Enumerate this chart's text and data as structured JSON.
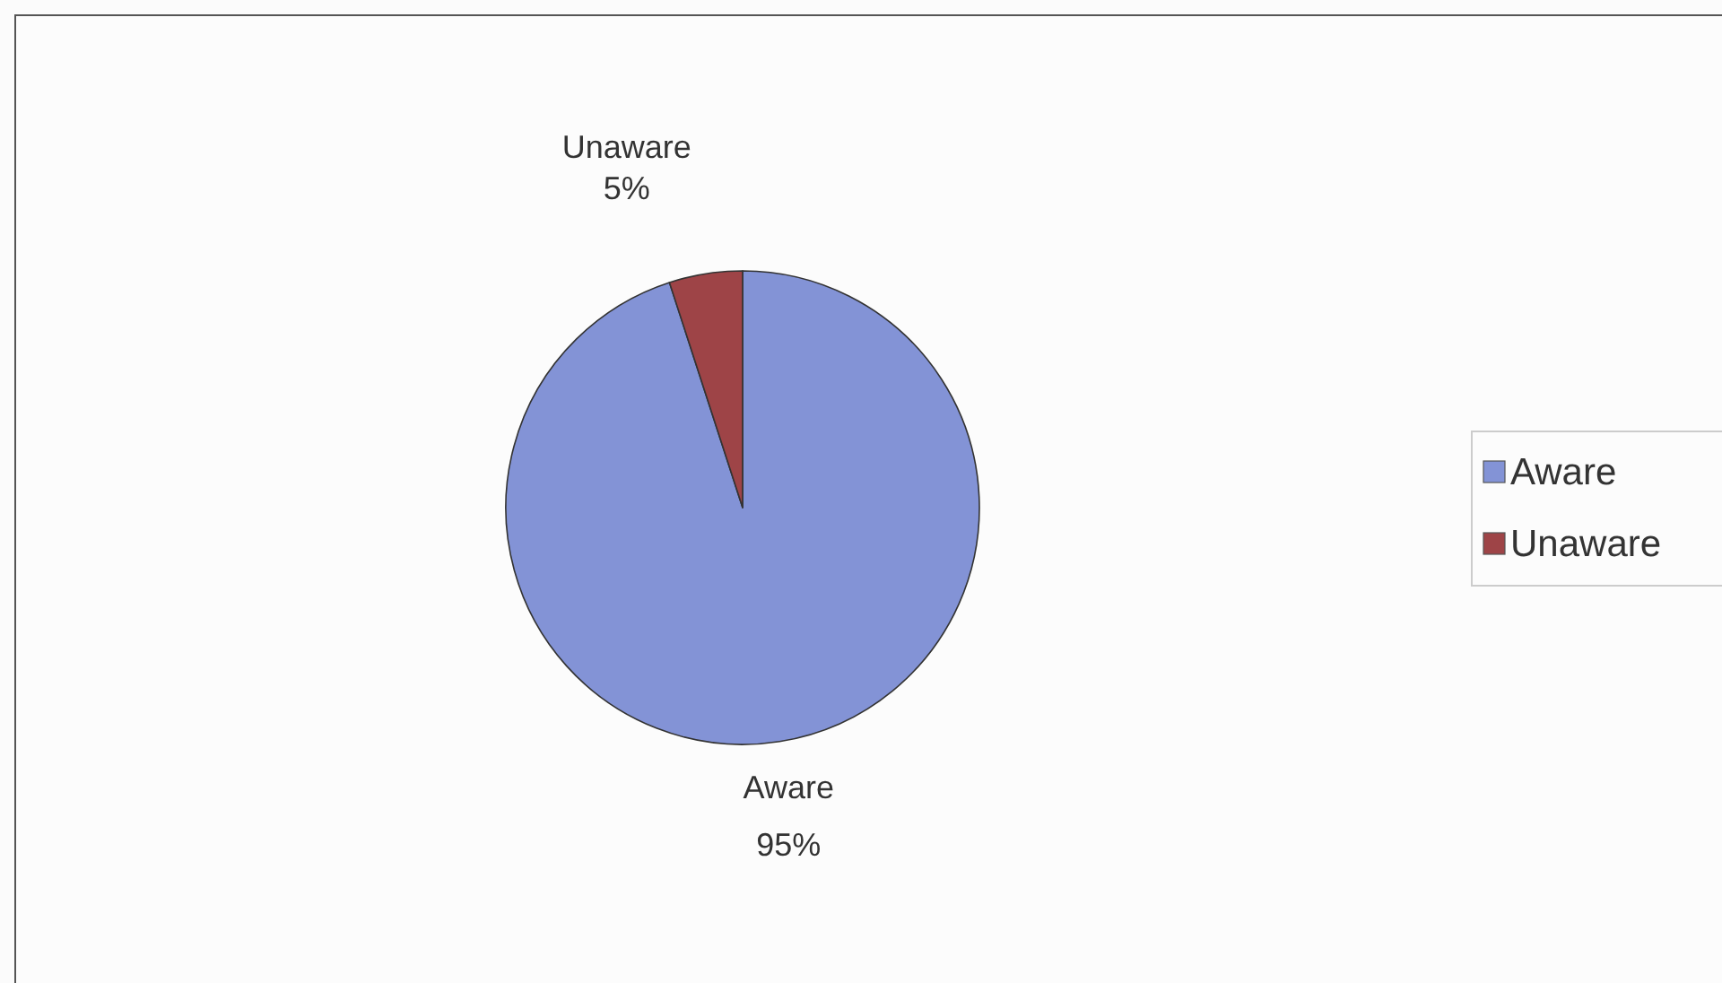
{
  "chart_data": {
    "type": "pie",
    "categories": [
      "Aware",
      "Unaware"
    ],
    "values": [
      95,
      5
    ],
    "colors": [
      "#8393d6",
      "#9e4447"
    ],
    "value_labels": [
      "95%",
      "5%"
    ],
    "legend": "right"
  }
}
